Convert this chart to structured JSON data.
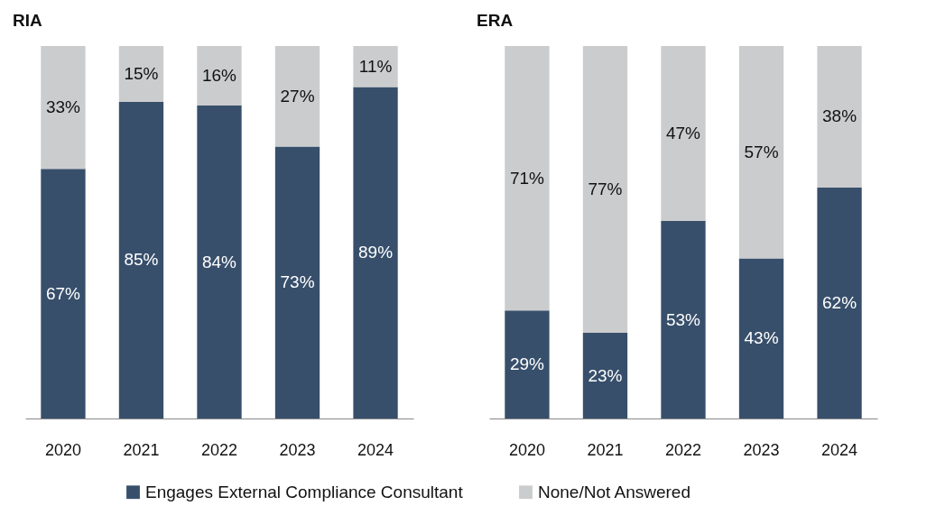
{
  "chart_data": [
    {
      "type": "bar",
      "title": "RIA",
      "categories": [
        "2020",
        "2021",
        "2022",
        "2023",
        "2024"
      ],
      "stacked": true,
      "tick_labels": "x",
      "legend": "bottom",
      "series": [
        {
          "name": "Engages External Compliance Consultant",
          "color": "#374f6b",
          "values": [
            67,
            85,
            84,
            73,
            89
          ],
          "value_labels": [
            "67%",
            "85%",
            "84%",
            "73%",
            "89%"
          ]
        },
        {
          "name": "None/Not Answered",
          "color": "#cbcccd",
          "values": [
            33,
            15,
            16,
            27,
            11
          ],
          "value_labels": [
            "33%",
            "15%",
            "16%",
            "27%",
            "11%"
          ]
        }
      ]
    },
    {
      "type": "bar",
      "title": "ERA",
      "categories": [
        "2020",
        "2021",
        "2022",
        "2023",
        "2024"
      ],
      "stacked": true,
      "tick_labels": "x",
      "legend": "bottom",
      "series": [
        {
          "name": "Engages External Compliance Consultant",
          "color": "#374f6b",
          "values": [
            29,
            23,
            53,
            43,
            62
          ],
          "value_labels": [
            "29%",
            "23%",
            "53%",
            "43%",
            "62%"
          ]
        },
        {
          "name": "None/Not Answered",
          "color": "#cbcccd",
          "values": [
            71,
            77,
            47,
            57,
            38
          ],
          "value_labels": [
            "71%",
            "77%",
            "47%",
            "57%",
            "38%"
          ]
        }
      ]
    }
  ]
}
